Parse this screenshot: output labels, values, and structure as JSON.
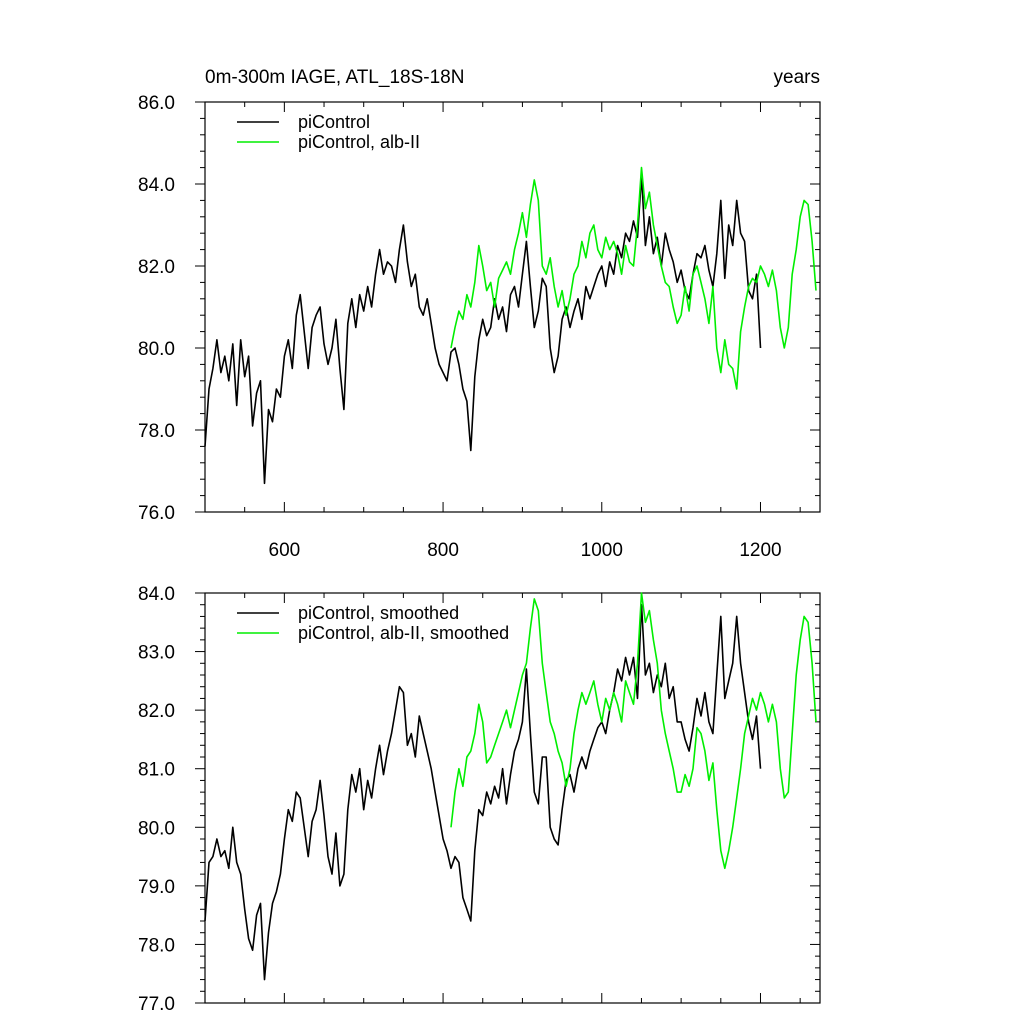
{
  "title_left": "0m-300m IAGE, ATL_18S-18N",
  "title_right": "years",
  "colors": {
    "control": "#000000",
    "alb": "#00ee00",
    "axis": "#000000",
    "background": "#ffffff"
  },
  "chart_data": [
    {
      "type": "line",
      "xlim": [
        500,
        1275
      ],
      "ylim": [
        76.0,
        86.0
      ],
      "x_ticks": [
        600,
        800,
        1000,
        1200
      ],
      "x_tick_labels": [
        "600",
        "800",
        "1000",
        "1200"
      ],
      "y_ticks": [
        76.0,
        78.0,
        80.0,
        82.0,
        84.0,
        86.0
      ],
      "y_tick_labels": [
        "76.0",
        "78.0",
        "80.0",
        "82.0",
        "84.0",
        "86.0"
      ],
      "legend_position": "top-left",
      "grid": false,
      "series": [
        {
          "name": "piControl",
          "color": "#000000",
          "x": [
            500,
            505,
            510,
            515,
            520,
            525,
            530,
            535,
            540,
            545,
            550,
            555,
            560,
            565,
            570,
            575,
            580,
            585,
            590,
            595,
            600,
            605,
            610,
            615,
            620,
            625,
            630,
            635,
            640,
            645,
            650,
            655,
            660,
            665,
            670,
            675,
            680,
            685,
            690,
            695,
            700,
            705,
            710,
            715,
            720,
            725,
            730,
            735,
            740,
            745,
            750,
            755,
            760,
            765,
            770,
            775,
            780,
            785,
            790,
            795,
            800,
            805,
            810,
            815,
            820,
            825,
            830,
            835,
            840,
            845,
            850,
            855,
            860,
            865,
            870,
            875,
            880,
            885,
            890,
            895,
            900,
            905,
            910,
            915,
            920,
            925,
            930,
            935,
            940,
            945,
            950,
            955,
            960,
            965,
            970,
            975,
            980,
            985,
            990,
            995,
            1000,
            1005,
            1010,
            1015,
            1020,
            1025,
            1030,
            1035,
            1040,
            1045,
            1050,
            1055,
            1060,
            1065,
            1070,
            1075,
            1080,
            1085,
            1090,
            1095,
            1100,
            1105,
            1110,
            1115,
            1120,
            1125,
            1130,
            1135,
            1140,
            1145,
            1150,
            1155,
            1160,
            1165,
            1170,
            1175,
            1180,
            1185,
            1190,
            1195,
            1200
          ],
          "y": [
            77.6,
            79.0,
            79.5,
            80.2,
            79.4,
            79.8,
            79.2,
            80.1,
            78.6,
            80.2,
            79.3,
            79.8,
            78.1,
            78.9,
            79.2,
            76.7,
            78.5,
            78.2,
            79.0,
            78.8,
            79.8,
            80.2,
            79.5,
            80.8,
            81.3,
            80.4,
            79.5,
            80.5,
            80.8,
            81.0,
            80.1,
            79.6,
            80.0,
            80.7,
            79.5,
            78.5,
            80.6,
            81.2,
            80.5,
            81.3,
            80.9,
            81.5,
            81.0,
            81.8,
            82.4,
            81.8,
            82.1,
            82.0,
            81.6,
            82.4,
            83.0,
            82.1,
            81.5,
            81.8,
            81.0,
            80.8,
            81.2,
            80.6,
            80.0,
            79.6,
            79.4,
            79.2,
            79.9,
            80.0,
            79.6,
            79.0,
            78.7,
            77.5,
            79.3,
            80.2,
            80.7,
            80.3,
            80.5,
            81.2,
            80.7,
            81.0,
            80.4,
            81.3,
            81.5,
            81.0,
            81.8,
            82.6,
            81.5,
            80.5,
            80.9,
            81.7,
            81.5,
            80.0,
            79.4,
            79.8,
            80.7,
            81.0,
            80.5,
            80.9,
            81.2,
            80.7,
            81.5,
            81.2,
            81.5,
            81.8,
            82.0,
            81.5,
            82.1,
            81.8,
            82.5,
            82.2,
            82.8,
            82.6,
            83.1,
            82.7,
            84.2,
            82.5,
            83.2,
            82.3,
            82.7,
            82.0,
            82.8,
            82.4,
            82.1,
            81.6,
            81.9,
            81.4,
            81.2,
            81.8,
            82.3,
            82.2,
            82.5,
            81.9,
            81.5,
            82.3,
            83.6,
            81.7,
            83.0,
            82.5,
            83.6,
            82.8,
            82.6,
            81.4,
            81.2,
            81.8,
            80.0
          ]
        },
        {
          "name": "piControl, alb-II",
          "color": "#00ee00",
          "x": [
            810,
            815,
            820,
            825,
            830,
            835,
            840,
            845,
            850,
            855,
            860,
            865,
            870,
            875,
            880,
            885,
            890,
            895,
            900,
            905,
            910,
            915,
            920,
            925,
            930,
            935,
            940,
            945,
            950,
            955,
            960,
            965,
            970,
            975,
            980,
            985,
            990,
            995,
            1000,
            1005,
            1010,
            1015,
            1020,
            1025,
            1030,
            1035,
            1040,
            1045,
            1050,
            1055,
            1060,
            1065,
            1070,
            1075,
            1080,
            1085,
            1090,
            1095,
            1100,
            1105,
            1110,
            1115,
            1120,
            1125,
            1130,
            1135,
            1140,
            1145,
            1150,
            1155,
            1160,
            1165,
            1170,
            1175,
            1180,
            1185,
            1190,
            1195,
            1200,
            1205,
            1210,
            1215,
            1220,
            1225,
            1230,
            1235,
            1240,
            1245,
            1250,
            1255,
            1260,
            1265,
            1270
          ],
          "y": [
            80.0,
            80.5,
            80.9,
            80.7,
            81.3,
            81.0,
            81.6,
            82.5,
            82.0,
            81.4,
            81.6,
            81.0,
            81.7,
            81.9,
            82.1,
            81.8,
            82.4,
            82.8,
            83.3,
            82.7,
            83.5,
            84.1,
            83.6,
            82.0,
            81.8,
            82.2,
            81.5,
            81.0,
            81.4,
            80.8,
            81.2,
            81.8,
            82.0,
            82.6,
            82.2,
            82.8,
            83.0,
            82.4,
            82.2,
            82.7,
            82.4,
            82.6,
            82.3,
            81.8,
            82.5,
            82.1,
            82.0,
            83.0,
            84.4,
            83.4,
            83.8,
            83.0,
            82.5,
            82.0,
            81.6,
            81.5,
            81.0,
            80.6,
            80.8,
            81.5,
            80.9,
            81.8,
            82.0,
            81.6,
            81.2,
            80.6,
            81.5,
            80.0,
            79.4,
            80.2,
            79.6,
            79.5,
            79.0,
            80.4,
            81.0,
            81.5,
            81.7,
            81.6,
            82.0,
            81.8,
            81.5,
            81.9,
            81.4,
            80.5,
            80.0,
            80.5,
            81.8,
            82.4,
            83.2,
            83.6,
            83.5,
            82.6,
            81.4
          ]
        }
      ]
    },
    {
      "type": "line",
      "xlim": [
        500,
        1275
      ],
      "ylim": [
        77.0,
        84.0
      ],
      "x_ticks": [
        600,
        800,
        1000,
        1200
      ],
      "x_tick_labels": [],
      "y_ticks": [
        77.0,
        78.0,
        79.0,
        80.0,
        81.0,
        82.0,
        83.0,
        84.0
      ],
      "y_tick_labels": [
        "77.0",
        "78.0",
        "79.0",
        "80.0",
        "81.0",
        "82.0",
        "83.0",
        "84.0"
      ],
      "legend_position": "top-left",
      "grid": false,
      "series": [
        {
          "name": "piControl, smoothed",
          "color": "#000000",
          "x": [
            500,
            505,
            510,
            515,
            520,
            525,
            530,
            535,
            540,
            545,
            550,
            555,
            560,
            565,
            570,
            575,
            580,
            585,
            590,
            595,
            600,
            605,
            610,
            615,
            620,
            625,
            630,
            635,
            640,
            645,
            650,
            655,
            660,
            665,
            670,
            675,
            680,
            685,
            690,
            695,
            700,
            705,
            710,
            715,
            720,
            725,
            730,
            735,
            740,
            745,
            750,
            755,
            760,
            765,
            770,
            775,
            780,
            785,
            790,
            795,
            800,
            805,
            810,
            815,
            820,
            825,
            830,
            835,
            840,
            845,
            850,
            855,
            860,
            865,
            870,
            875,
            880,
            885,
            890,
            895,
            900,
            905,
            910,
            915,
            920,
            925,
            930,
            935,
            940,
            945,
            950,
            955,
            960,
            965,
            970,
            975,
            980,
            985,
            990,
            995,
            1000,
            1005,
            1010,
            1015,
            1020,
            1025,
            1030,
            1035,
            1040,
            1045,
            1050,
            1055,
            1060,
            1065,
            1070,
            1075,
            1080,
            1085,
            1090,
            1095,
            1100,
            1105,
            1110,
            1115,
            1120,
            1125,
            1130,
            1135,
            1140,
            1145,
            1150,
            1155,
            1160,
            1165,
            1170,
            1175,
            1180,
            1185,
            1190,
            1195,
            1200
          ],
          "y": [
            78.4,
            79.4,
            79.5,
            79.8,
            79.5,
            79.6,
            79.3,
            80.0,
            79.4,
            79.2,
            78.6,
            78.1,
            77.9,
            78.5,
            78.7,
            77.4,
            78.2,
            78.7,
            78.9,
            79.2,
            79.8,
            80.3,
            80.1,
            80.6,
            80.5,
            80.0,
            79.5,
            80.1,
            80.3,
            80.8,
            80.2,
            79.5,
            79.2,
            79.9,
            79.0,
            79.2,
            80.3,
            80.9,
            80.6,
            81.0,
            80.3,
            80.8,
            80.5,
            81.0,
            81.4,
            80.9,
            81.3,
            81.6,
            82.0,
            82.4,
            82.3,
            81.4,
            81.6,
            81.2,
            81.9,
            81.6,
            81.3,
            81.0,
            80.6,
            80.2,
            79.8,
            79.6,
            79.3,
            79.5,
            79.4,
            78.8,
            78.6,
            78.4,
            79.6,
            80.3,
            80.2,
            80.6,
            80.4,
            80.7,
            80.5,
            81.0,
            80.4,
            80.9,
            81.3,
            81.5,
            81.8,
            82.7,
            81.6,
            80.6,
            80.4,
            81.2,
            81.2,
            80.0,
            79.8,
            79.7,
            80.3,
            80.8,
            80.9,
            80.6,
            81.0,
            81.2,
            81.0,
            81.3,
            81.5,
            81.7,
            81.8,
            81.6,
            82.0,
            82.3,
            82.7,
            82.5,
            82.9,
            82.6,
            82.9,
            82.2,
            83.8,
            82.6,
            82.8,
            82.3,
            82.6,
            82.4,
            82.8,
            82.2,
            82.4,
            81.8,
            81.8,
            81.5,
            81.3,
            81.7,
            82.2,
            81.9,
            82.3,
            81.8,
            81.6,
            82.6,
            83.6,
            82.2,
            82.5,
            82.8,
            83.6,
            82.8,
            82.3,
            81.8,
            81.5,
            81.9,
            81.0
          ]
        },
        {
          "name": "piControl, alb-II, smoothed",
          "color": "#00ee00",
          "x": [
            810,
            815,
            820,
            825,
            830,
            835,
            840,
            845,
            850,
            855,
            860,
            865,
            870,
            875,
            880,
            885,
            890,
            895,
            900,
            905,
            910,
            915,
            920,
            925,
            930,
            935,
            940,
            945,
            950,
            955,
            960,
            965,
            970,
            975,
            980,
            985,
            990,
            995,
            1000,
            1005,
            1010,
            1015,
            1020,
            1025,
            1030,
            1035,
            1040,
            1045,
            1050,
            1055,
            1060,
            1065,
            1070,
            1075,
            1080,
            1085,
            1090,
            1095,
            1100,
            1105,
            1110,
            1115,
            1120,
            1125,
            1130,
            1135,
            1140,
            1145,
            1150,
            1155,
            1160,
            1165,
            1170,
            1175,
            1180,
            1185,
            1190,
            1195,
            1200,
            1205,
            1210,
            1215,
            1220,
            1225,
            1230,
            1235,
            1240,
            1245,
            1250,
            1255,
            1260,
            1265,
            1270
          ],
          "y": [
            80.0,
            80.6,
            81.0,
            80.7,
            81.2,
            81.3,
            81.6,
            82.1,
            81.8,
            81.1,
            81.2,
            81.4,
            81.6,
            81.8,
            82.0,
            81.7,
            82.0,
            82.3,
            82.6,
            82.8,
            83.4,
            83.9,
            83.7,
            82.8,
            82.3,
            81.8,
            81.6,
            81.3,
            81.1,
            80.7,
            81.0,
            81.6,
            82.0,
            82.3,
            82.1,
            82.3,
            82.5,
            82.1,
            81.8,
            82.2,
            82.0,
            82.3,
            82.1,
            81.8,
            82.5,
            82.3,
            82.1,
            82.8,
            84.0,
            83.5,
            83.7,
            83.2,
            82.8,
            82.0,
            81.6,
            81.3,
            81.0,
            80.6,
            80.6,
            80.9,
            80.7,
            81.0,
            81.7,
            81.6,
            81.3,
            80.8,
            81.1,
            80.3,
            79.6,
            79.3,
            79.6,
            80.0,
            80.5,
            81.0,
            81.6,
            81.9,
            82.2,
            82.0,
            82.3,
            82.1,
            81.8,
            82.1,
            81.8,
            81.0,
            80.5,
            80.6,
            81.6,
            82.6,
            83.2,
            83.6,
            83.5,
            82.8,
            81.8
          ]
        }
      ]
    }
  ]
}
